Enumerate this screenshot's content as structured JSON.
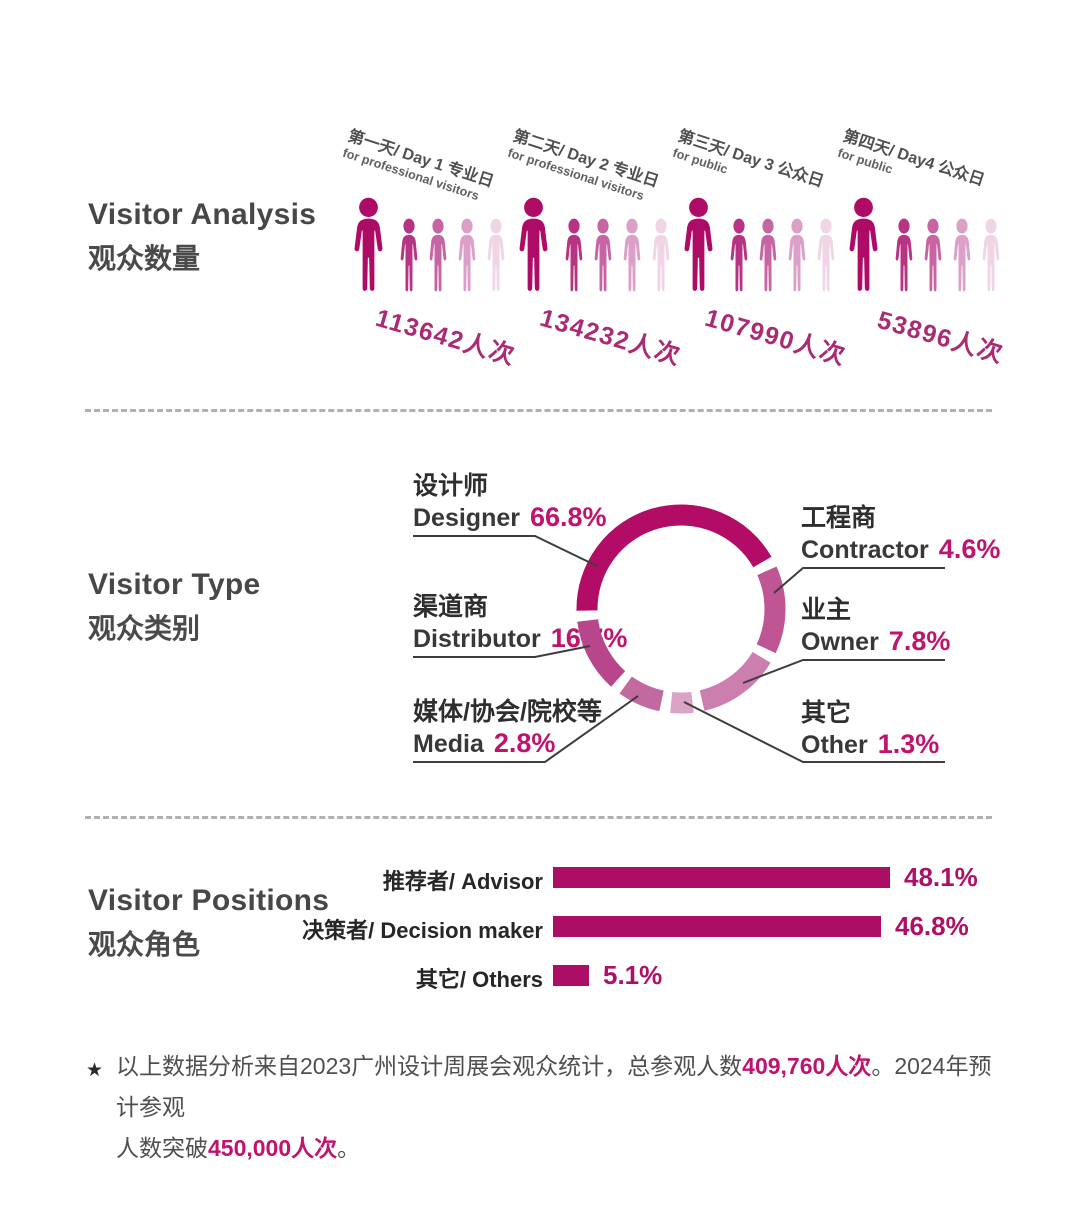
{
  "colors": {
    "primary_dark": "#b30c66",
    "accent_text": "#c0136e",
    "bar_fill": "#ac0e65",
    "count_pink": "#aa2a74",
    "title_gray": "#474747",
    "label_dark": "#2e2e2e",
    "leader_line": "#3d3d3d",
    "divider_gray": "#b0b0b0"
  },
  "sections": {
    "analysis": {
      "title_en": "Visitor Analysis",
      "title_zh": "观众数量",
      "icon_colors": [
        "#ad0b66",
        "#b73485",
        "#c765a4",
        "#dc9fc8",
        "#f0d5e6"
      ],
      "days": [
        {
          "label_line1": "第一天/ Day 1 专业日",
          "label_line2": "for professional visitors",
          "count": "113642人次"
        },
        {
          "label_line1": "第二天/ Day 2 专业日",
          "label_line2": "for professional visitors",
          "count": "134232人次"
        },
        {
          "label_line1": "第三天/ Day 3 公众日",
          "label_line2": "for public",
          "count": "107990人次"
        },
        {
          "label_line1": "第四天/ Day4 公众日",
          "label_line2": "for public",
          "count": "53896人次"
        }
      ]
    },
    "type": {
      "title_en": "Visitor Type",
      "title_zh": "观众类别",
      "segments": [
        {
          "key": "designer",
          "zh": "设计师",
          "en": "Designer",
          "value": "66.8%",
          "color": "#b30c66"
        },
        {
          "key": "distributor",
          "zh": "渠道商",
          "en": "Distributor",
          "value": "16.7%",
          "color": "#b8468b"
        },
        {
          "key": "media",
          "zh": "媒体/协会/院校等",
          "en": "Media",
          "value": "2.8%",
          "color": "#c26a9f"
        },
        {
          "key": "contractor",
          "zh": "工程商",
          "en": "Contractor",
          "value": "4.6%",
          "color": "#c05594"
        },
        {
          "key": "owner",
          "zh": "业主",
          "en": "Owner",
          "value": "7.8%",
          "color": "#cc7fae"
        },
        {
          "key": "other",
          "zh": "其它",
          "en": "Other",
          "value": "1.3%",
          "color": "#dba4c7"
        }
      ]
    },
    "positions": {
      "title_en": "Visitor Positions",
      "title_zh": "观众角色",
      "rows": [
        {
          "label": "推荐者/ Advisor",
          "value": "48.1%"
        },
        {
          "label": "决策者/ Decision maker",
          "value": "46.8%"
        },
        {
          "label": "其它/ Others",
          "value": "5.1%"
        }
      ]
    },
    "footnote": {
      "star": "★",
      "line1": [
        {
          "text": "以上数据分析来自2023广州设计周展会观众统计，总参观人数"
        },
        {
          "text": "409,760人次",
          "highlight": true
        },
        {
          "text": "。2024年预计参观"
        }
      ],
      "line2": [
        {
          "text": "人数突破"
        },
        {
          "text": "450,000人次",
          "highlight": true
        },
        {
          "text": "。"
        }
      ]
    }
  },
  "chart_data": [
    {
      "type": "bar",
      "title": "Visitor Analysis 观众数量",
      "categories": [
        "第一天/ Day 1 专业日 for professional visitors",
        "第二天/ Day 2 专业日 for professional visitors",
        "第三天/ Day 3 公众日 for public",
        "第四天/ Day4 公众日 for public"
      ],
      "values": [
        113642,
        134232,
        107990,
        53896
      ],
      "unit": "人次",
      "xlabel": "",
      "ylabel": "人次"
    },
    {
      "type": "pie",
      "subtype": "donut",
      "title": "Visitor Type 观众类别",
      "categories": [
        "设计师 Designer",
        "渠道商 Distributor",
        "媒体/协会/院校等 Media",
        "工程商 Contractor",
        "业主 Owner",
        "其它 Other"
      ],
      "values": [
        66.8,
        16.7,
        2.8,
        4.6,
        7.8,
        1.3
      ],
      "unit": "%",
      "legend_position": "around-with-leader-lines"
    },
    {
      "type": "bar",
      "orientation": "horizontal",
      "title": "Visitor Positions 观众角色",
      "categories": [
        "推荐者/ Advisor",
        "决策者/ Decision maker",
        "其它/ Others"
      ],
      "values": [
        48.1,
        46.8,
        5.1
      ],
      "unit": "%",
      "xlim": [
        0,
        50
      ]
    }
  ]
}
